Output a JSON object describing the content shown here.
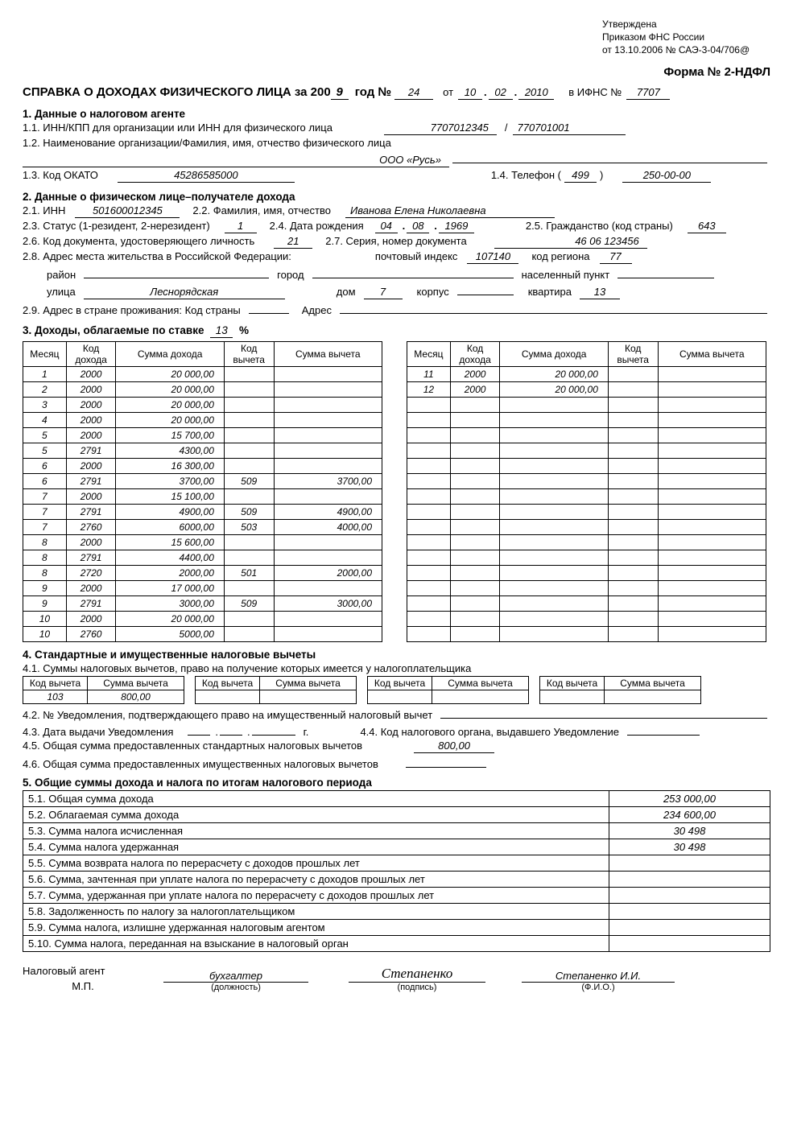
{
  "approved": {
    "l1": "Утверждена",
    "l2": "Приказом ФНС России",
    "l3": "от 13.10.2006 № САЭ-3-04/706@"
  },
  "formNo": "Форма № 2-НДФЛ",
  "title": {
    "prefix": "СПРАВКА О ДОХОДАХ ФИЗИЧЕСКОГО ЛИЦА за 200",
    "year": "9",
    "numLabel": "год №",
    "num": "24",
    "ot": "от",
    "d": "10",
    "m": "02",
    "y": "2010",
    "ifnsLabel": "в ИФНС №",
    "ifns": "7707"
  },
  "s1": {
    "h": "1. Данные о налоговом агенте",
    "l1_label": "1.1. ИНН/КПП для организации или ИНН для физического лица",
    "inn": "7707012345",
    "kpp": "770701001",
    "l2_label": "1.2. Наименование организации/Фамилия, имя, отчество физического лица",
    "org": "ООО «Русь»",
    "l3_label": "1.3. Код ОКАТО",
    "okato": "45286585000",
    "l4_label": "1.4. Телефон (",
    "tel_area": "499",
    "tel": "250-00-00"
  },
  "s2": {
    "h": "2. Данные о физическом лице–получателе дохода",
    "l1_label": "2.1. ИНН",
    "inn": "501600012345",
    "l2_label": "2.2. Фамилия, имя, отчество",
    "fio": "Иванова Елена Николаевна",
    "l3_label": "2.3. Статус (1-резидент, 2-нерезидент)",
    "status": "1",
    "l4_label": "2.4. Дата рождения",
    "dob_d": "04",
    "dob_m": "08",
    "dob_y": "1969",
    "l5_label": "2.5. Гражданство (код страны)",
    "citizenship": "643",
    "l6_label": "2.6. Код документа, удостоверяющего личность",
    "doc_code": "21",
    "l7_label": "2.7. Серия, номер документа",
    "doc_num": "46 06 123456",
    "l8_label": "2.8. Адрес места жительства в Российской Федерации:",
    "postidx_label": "почтовый индекс",
    "postidx": "107140",
    "region_label": "код региона",
    "region": "77",
    "raion_label": "район",
    "city_label": "город",
    "town_label": "населенный пункт",
    "street_label": "улица",
    "street": "Леснорядская",
    "house_label": "дом",
    "house": "7",
    "corp_label": "корпус",
    "flat_label": "квартира",
    "flat": "13",
    "l9_label": "2.9. Адрес в стране проживания: Код страны",
    "addr_label": "Адрес"
  },
  "s3": {
    "h_prefix": "3. Доходы, облагаемые по ставке",
    "rate": "13",
    "cols": {
      "month": "Месяц",
      "kd": "Код дохода",
      "sd": "Сумма дохода",
      "kv": "Код вычета",
      "sv": "Сумма вычета"
    },
    "left": [
      {
        "m": "1",
        "kd": "2000",
        "sd": "20 000,00",
        "kv": "",
        "sv": ""
      },
      {
        "m": "2",
        "kd": "2000",
        "sd": "20 000,00",
        "kv": "",
        "sv": ""
      },
      {
        "m": "3",
        "kd": "2000",
        "sd": "20 000,00",
        "kv": "",
        "sv": ""
      },
      {
        "m": "4",
        "kd": "2000",
        "sd": "20 000,00",
        "kv": "",
        "sv": ""
      },
      {
        "m": "5",
        "kd": "2000",
        "sd": "15 700,00",
        "kv": "",
        "sv": ""
      },
      {
        "m": "5",
        "kd": "2791",
        "sd": "4300,00",
        "kv": "",
        "sv": ""
      },
      {
        "m": "6",
        "kd": "2000",
        "sd": "16 300,00",
        "kv": "",
        "sv": ""
      },
      {
        "m": "6",
        "kd": "2791",
        "sd": "3700,00",
        "kv": "509",
        "sv": "3700,00"
      },
      {
        "m": "7",
        "kd": "2000",
        "sd": "15 100,00",
        "kv": "",
        "sv": ""
      },
      {
        "m": "7",
        "kd": "2791",
        "sd": "4900,00",
        "kv": "509",
        "sv": "4900,00"
      },
      {
        "m": "7",
        "kd": "2760",
        "sd": "6000,00",
        "kv": "503",
        "sv": "4000,00"
      },
      {
        "m": "8",
        "kd": "2000",
        "sd": "15 600,00",
        "kv": "",
        "sv": ""
      },
      {
        "m": "8",
        "kd": "2791",
        "sd": "4400,00",
        "kv": "",
        "sv": ""
      },
      {
        "m": "8",
        "kd": "2720",
        "sd": "2000,00",
        "kv": "501",
        "sv": "2000,00"
      },
      {
        "m": "9",
        "kd": "2000",
        "sd": "17 000,00",
        "kv": "",
        "sv": ""
      },
      {
        "m": "9",
        "kd": "2791",
        "sd": "3000,00",
        "kv": "509",
        "sv": "3000,00"
      },
      {
        "m": "10",
        "kd": "2000",
        "sd": "20 000,00",
        "kv": "",
        "sv": ""
      },
      {
        "m": "10",
        "kd": "2760",
        "sd": "5000,00",
        "kv": "",
        "sv": ""
      }
    ],
    "right": [
      {
        "m": "11",
        "kd": "2000",
        "sd": "20 000,00",
        "kv": "",
        "sv": ""
      },
      {
        "m": "12",
        "kd": "2000",
        "sd": "20 000,00",
        "kv": "",
        "sv": ""
      }
    ],
    "rightBlanks": 16
  },
  "s4": {
    "h": "4. Стандартные и имущественные налоговые вычеты",
    "l1": "4.1. Суммы налоговых вычетов, право на получение которых имеется у налогоплательщика",
    "cols": {
      "kv": "Код вычета",
      "sv": "Сумма вычета"
    },
    "row": {
      "kv": "103",
      "sv": "800,00"
    },
    "l2": "4.2. № Уведомления, подтверждающего право на имущественный налоговый вычет",
    "l3": "4.3. Дата выдачи Уведомления",
    "l3_suffix": "г.",
    "l4": "4.4. Код налогового органа, выдавшего Уведомление",
    "l5": "4.5. Общая сумма предоставленных стандартных налоговых вычетов",
    "l5_val": "800,00",
    "l6": "4.6. Общая сумма предоставленных имущественных налоговых вычетов"
  },
  "s5": {
    "h": "5. Общие суммы дохода и налога по итогам налогового периода",
    "rows": [
      {
        "label": "5.1. Общая сумма дохода",
        "val": "253 000,00"
      },
      {
        "label": "5.2. Облагаемая сумма дохода",
        "val": "234 600,00"
      },
      {
        "label": "5.3. Сумма налога исчисленная",
        "val": "30 498"
      },
      {
        "label": "5.4. Сумма налога удержанная",
        "val": "30 498"
      },
      {
        "label": "5.5. Сумма возврата налога по перерасчету с доходов прошлых лет",
        "val": ""
      },
      {
        "label": "5.6. Сумма, зачтенная при уплате налога по перерасчету с доходов прошлых лет",
        "val": ""
      },
      {
        "label": "5.7. Сумма, удержанная при уплате налога по перерасчету с доходов прошлых лет",
        "val": ""
      },
      {
        "label": "5.8. Задолженность по налогу за налогоплательщиком",
        "val": ""
      },
      {
        "label": "5.9. Сумма налога, излишне удержанная налоговым агентом",
        "val": ""
      },
      {
        "label": "5.10. Сумма налога, переданная на взыскание в налоговый орган",
        "val": ""
      }
    ]
  },
  "sign": {
    "agent": "Налоговый агент",
    "mp": "М.П.",
    "position": "бухгалтер",
    "position_caption": "(должность)",
    "signature": "Степаненко",
    "signature_caption": "(подпись)",
    "fio": "Степаненко И.И.",
    "fio_caption": "(Ф.И.О.)"
  }
}
